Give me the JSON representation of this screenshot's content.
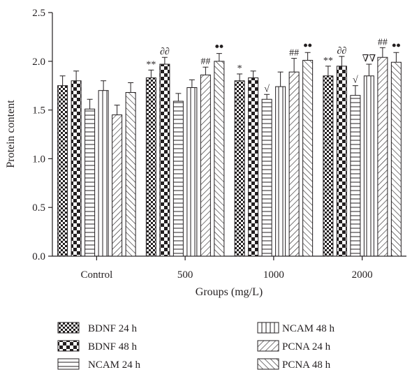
{
  "chart_data": {
    "type": "bar",
    "title": "",
    "xlabel": "Groups (mg/L)",
    "ylabel": "Protein content",
    "ylim": [
      0,
      2.5
    ],
    "yticks": [
      "0.0",
      "0.5",
      "1.0",
      "1.5",
      "2.0",
      "2.5"
    ],
    "categories": [
      "Control",
      "500",
      "1000",
      "2000"
    ],
    "series": [
      {
        "name": "BDNF 24 h",
        "pattern": "checker-fine",
        "values": [
          1.75,
          1.83,
          1.8,
          1.85
        ],
        "errors": [
          0.1,
          0.08,
          0.07,
          0.1
        ],
        "annotations": [
          "",
          "**",
          "*",
          "**"
        ]
      },
      {
        "name": "BDNF 48 h",
        "pattern": "checker-coarse",
        "values": [
          1.8,
          1.97,
          1.83,
          1.95
        ],
        "errors": [
          0.1,
          0.07,
          0.07,
          0.1
        ],
        "annotations": [
          "",
          "∂∂",
          "",
          "∂∂"
        ]
      },
      {
        "name": "NCAM 24 h",
        "pattern": "horizontal",
        "values": [
          1.51,
          1.59,
          1.61,
          1.65
        ],
        "errors": [
          0.1,
          0.08,
          0.05,
          0.1
        ],
        "annotations": [
          "",
          "",
          "√",
          "√"
        ]
      },
      {
        "name": "NCAM 48 h",
        "pattern": "vertical",
        "values": [
          1.7,
          1.73,
          1.74,
          1.85
        ],
        "errors": [
          0.1,
          0.08,
          0.15,
          0.12
        ],
        "annotations": [
          "",
          "",
          "",
          "∇∇"
        ]
      },
      {
        "name": "PCNA 24 h",
        "pattern": "diag-up",
        "values": [
          1.45,
          1.86,
          1.89,
          2.04
        ],
        "errors": [
          0.1,
          0.08,
          0.14,
          0.1
        ],
        "annotations": [
          "",
          "##",
          "##",
          "##"
        ]
      },
      {
        "name": "PCNA 48 h",
        "pattern": "diag-down",
        "values": [
          1.68,
          2.0,
          2.01,
          1.99
        ],
        "errors": [
          0.1,
          0.08,
          0.08,
          0.1
        ],
        "annotations": [
          "",
          "••",
          "••",
          "••"
        ]
      }
    ],
    "legend_position": "bottom"
  }
}
